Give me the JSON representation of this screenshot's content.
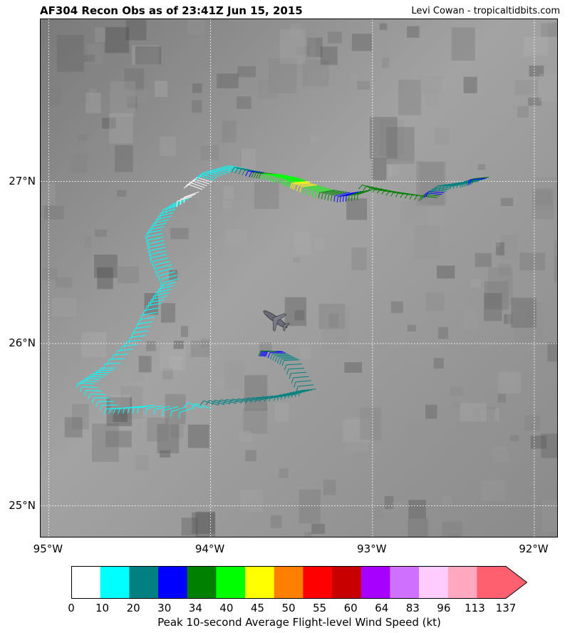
{
  "header": {
    "title": "AF304 Recon Obs as of 23:41Z Jun 15, 2015",
    "credit": "Levi Cowan - tropicaltidbits.com"
  },
  "axes": {
    "lon_labels": [
      "95°W",
      "94°W",
      "93°W",
      "92°W"
    ],
    "lat_labels": [
      "27°N",
      "26°N",
      "25°N"
    ],
    "lon_range": [
      -95.05,
      -91.85
    ],
    "lat_range": [
      24.8,
      28.0
    ],
    "gridlines": true
  },
  "colorbar": {
    "title": "Peak 10-second Average Flight-level Wind Speed (kt)",
    "ticks": [
      "0",
      "10",
      "20",
      "30",
      "34",
      "40",
      "45",
      "50",
      "55",
      "60",
      "64",
      "83",
      "96",
      "113",
      "137"
    ],
    "colors": [
      "#ffffff",
      "#00ffff",
      "#008080",
      "#0000ff",
      "#008000",
      "#00ff00",
      "#ffff00",
      "#ff8000",
      "#ff0000",
      "#c80000",
      "#a800ff",
      "#d070ff",
      "#ffccff",
      "#ffa8c0",
      "#ff6070"
    ],
    "extend": "max"
  },
  "aircraft": {
    "icon": "airplane-icon",
    "lon": -93.6,
    "lat": 26.15
  },
  "flight_track": [
    {
      "lon": -94.0,
      "lat": 25.6,
      "wind": 15
    },
    {
      "lon": -94.35,
      "lat": 25.62,
      "wind": 14
    },
    {
      "lon": -94.55,
      "lat": 25.6,
      "wind": 13
    },
    {
      "lon": -94.72,
      "lat": 25.75,
      "wind": 12
    },
    {
      "lon": -94.58,
      "lat": 25.85,
      "wind": 16
    },
    {
      "lon": -94.4,
      "lat": 26.05,
      "wind": 14
    },
    {
      "lon": -94.3,
      "lat": 26.25,
      "wind": 13
    },
    {
      "lon": -94.2,
      "lat": 26.4,
      "wind": 14
    },
    {
      "lon": -94.27,
      "lat": 26.55,
      "wind": 12
    },
    {
      "lon": -94.3,
      "lat": 26.7,
      "wind": 13
    },
    {
      "lon": -94.2,
      "lat": 26.85,
      "wind": 12
    },
    {
      "lon": -94.05,
      "lat": 26.95,
      "wind": 8
    },
    {
      "lon": -93.95,
      "lat": 27.03,
      "wind": 11
    },
    {
      "lon": -93.8,
      "lat": 27.08,
      "wind": 15
    },
    {
      "lon": -93.65,
      "lat": 27.05,
      "wind": 33
    },
    {
      "lon": -93.55,
      "lat": 27.04,
      "wind": 44
    },
    {
      "lon": -93.45,
      "lat": 27.02,
      "wind": 42
    },
    {
      "lon": -93.38,
      "lat": 26.99,
      "wind": 47
    },
    {
      "lon": -93.25,
      "lat": 26.95,
      "wind": 40
    },
    {
      "lon": -93.12,
      "lat": 26.93,
      "wind": 32
    },
    {
      "lon": -93.0,
      "lat": 26.95,
      "wind": 36
    },
    {
      "lon": -92.8,
      "lat": 26.92,
      "wind": 35
    },
    {
      "lon": -92.6,
      "lat": 26.9,
      "wind": 37
    },
    {
      "lon": -92.5,
      "lat": 26.97,
      "wind": 22
    },
    {
      "lon": -92.35,
      "lat": 27.0,
      "wind": 25
    },
    {
      "lon": -92.27,
      "lat": 27.03,
      "wind": 36
    },
    {
      "lon": -93.95,
      "lat": 25.62,
      "wind": 24
    },
    {
      "lon": -93.7,
      "lat": 25.65,
      "wind": 23
    },
    {
      "lon": -93.5,
      "lat": 25.68,
      "wind": 25
    },
    {
      "lon": -93.35,
      "lat": 25.72,
      "wind": 22
    },
    {
      "lon": -93.45,
      "lat": 25.9,
      "wind": 24
    },
    {
      "lon": -93.55,
      "lat": 25.95,
      "wind": 31
    },
    {
      "lon": -93.6,
      "lat": 25.95,
      "wind": 35
    }
  ]
}
